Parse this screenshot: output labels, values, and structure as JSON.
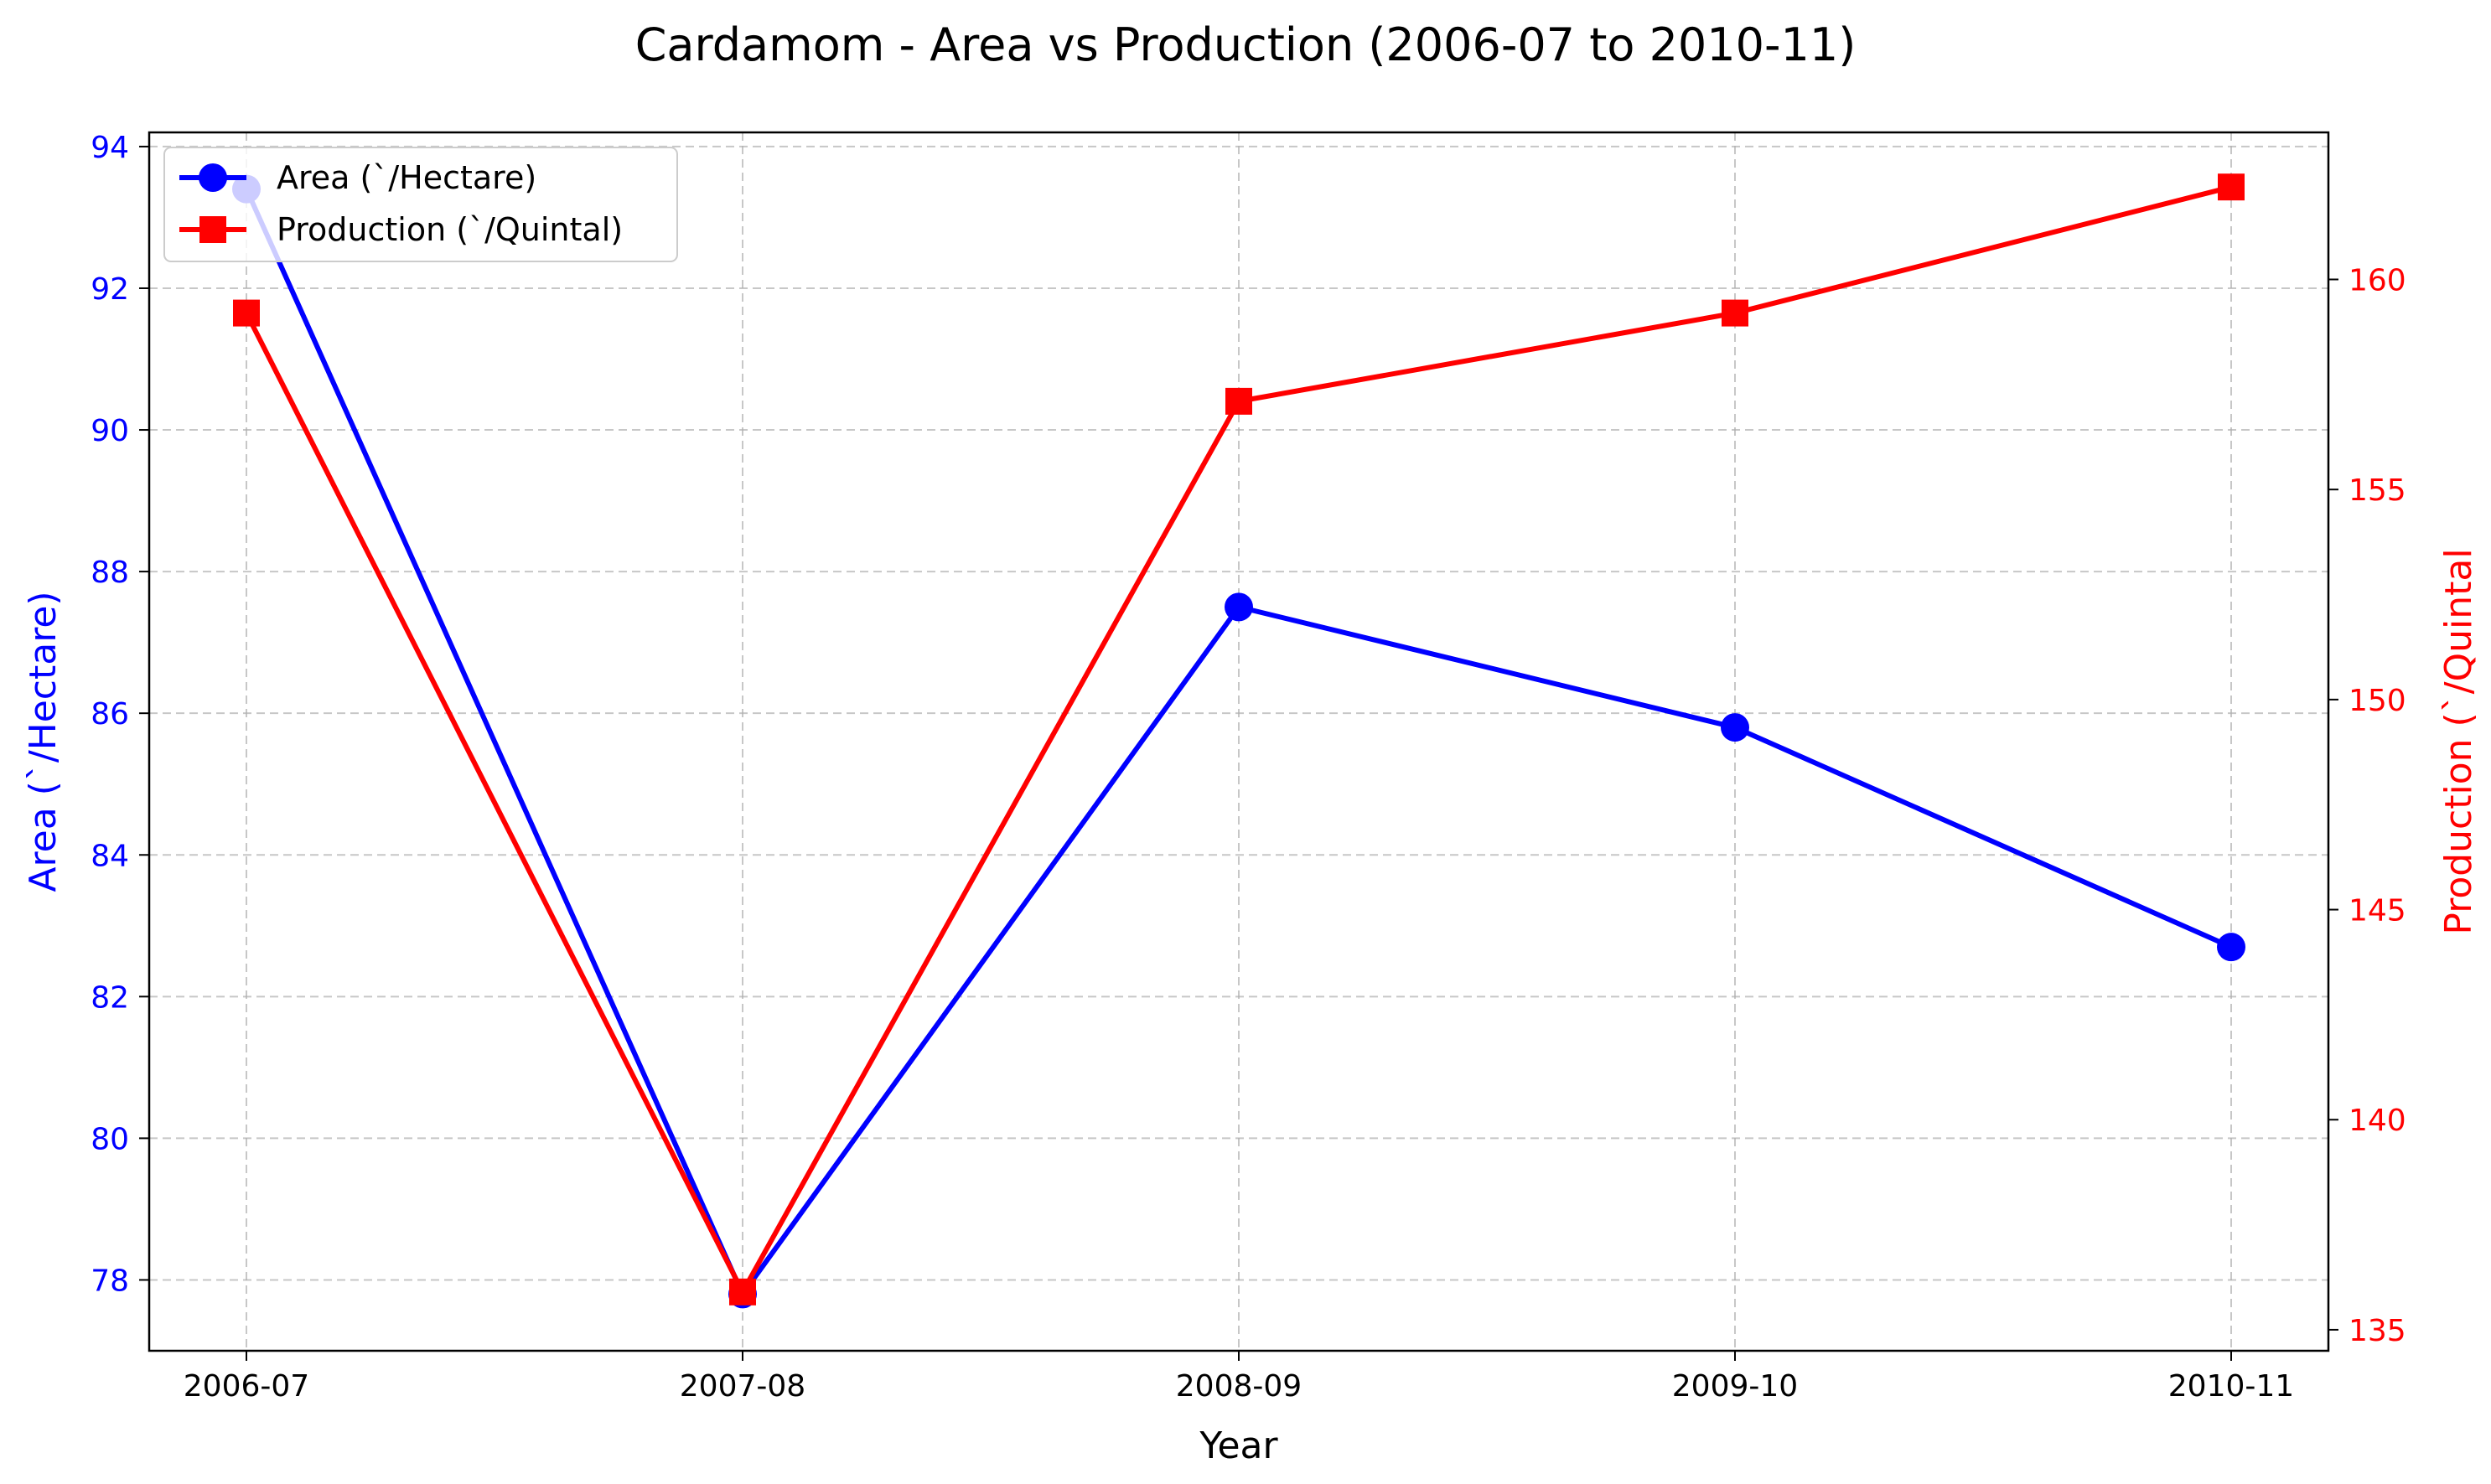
{
  "chart_data": {
    "type": "line",
    "title": "Cardamom  - Area vs Production (2006-07 to 2010-11)",
    "xlabel": "Year",
    "categories": [
      "2006-07",
      "2007-08",
      "2008-09",
      "2009-10",
      "2010-11"
    ],
    "left_axis": {
      "label": "Area (`/Hectare)",
      "ylim": [
        77,
        94.2
      ],
      "ticks": [
        78,
        80,
        82,
        84,
        86,
        88,
        90,
        92,
        94
      ],
      "color": "#0000ff"
    },
    "right_axis": {
      "label": "Production (`/Quintal",
      "ylim": [
        134.5,
        163.5
      ],
      "ticks": [
        135,
        140,
        145,
        150,
        155,
        160
      ],
      "color": "#ff0000"
    },
    "series": [
      {
        "name": "Area (`/Hectare)",
        "axis": "left",
        "marker": "circle",
        "color": "#0000ff",
        "values": [
          93.4,
          77.8,
          87.5,
          85.8,
          82.7
        ]
      },
      {
        "name": "Production (`/Quintal)",
        "axis": "right",
        "marker": "square",
        "color": "#ff0000",
        "values": [
          159.2,
          135.9,
          157.1,
          159.2,
          162.2
        ]
      }
    ],
    "grid": true,
    "legend_position": "top-left"
  }
}
